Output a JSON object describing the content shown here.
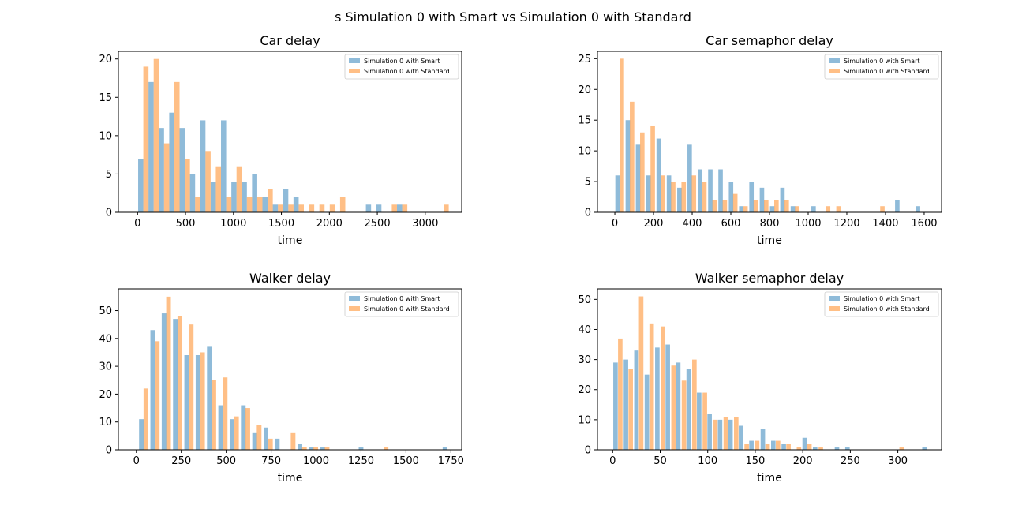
{
  "figure_title": "s Simulation 0 with Smart vs Simulation 0 with Standard",
  "colors": {
    "smart": "#1f77b4",
    "standard": "#ff7f0e",
    "bar_opacity": 0.5
  },
  "chart_data": [
    {
      "type": "bar",
      "title": "Car delay",
      "xlabel": "time",
      "ylabel": "",
      "xlim": [
        -200,
        3380
      ],
      "ylim": [
        0,
        21
      ],
      "xticks": [
        0,
        500,
        1000,
        1500,
        2000,
        2500,
        3000
      ],
      "yticks": [
        0,
        5,
        10,
        15,
        20
      ],
      "legend": "top-right",
      "grid": false,
      "bin_width": 54,
      "series": [
        {
          "name": "Simulation 0 with Smart",
          "x": [
            33,
            141,
            249,
            357,
            465,
            573,
            681,
            789,
            897,
            1005,
            1113,
            1221,
            1329,
            1437,
            1545,
            1653,
            2408,
            2516,
            2732
          ],
          "values": [
            7,
            17,
            11,
            13,
            11,
            5,
            12,
            4,
            12,
            4,
            4,
            5,
            2,
            1,
            3,
            2,
            1,
            1,
            1
          ]
        },
        {
          "name": "Simulation 0 with Standard",
          "x": [
            87,
            195,
            303,
            411,
            519,
            627,
            735,
            843,
            951,
            1059,
            1167,
            1275,
            1383,
            1491,
            1599,
            1707,
            1815,
            1923,
            2031,
            2139,
            2678,
            2786,
            3218
          ],
          "values": [
            19,
            20,
            9,
            17,
            7,
            2,
            8,
            6,
            2,
            6,
            2,
            2,
            3,
            1,
            1,
            1,
            1,
            1,
            1,
            2,
            1,
            1,
            1
          ]
        }
      ]
    },
    {
      "type": "bar",
      "title": "Car semaphor delay",
      "xlabel": "time",
      "ylabel": "",
      "xlim": [
        -90,
        1690
      ],
      "ylim": [
        0,
        26.2
      ],
      "xticks": [
        0,
        200,
        400,
        600,
        800,
        1000,
        1200,
        1400,
        1600
      ],
      "yticks": [
        0,
        5,
        10,
        15,
        20,
        25
      ],
      "legend": "top-right",
      "grid": false,
      "bin_width": 23,
      "series": [
        {
          "name": "Simulation 0 with Smart",
          "x": [
            14,
            67,
            120,
            174,
            227,
            280,
            334,
            387,
            441,
            494,
            547,
            601,
            654,
            707,
            761,
            814,
            867,
            921,
            1028,
            1461,
            1568
          ],
          "values": [
            6,
            15,
            11,
            6,
            12,
            6,
            4,
            11,
            7,
            7,
            7,
            5,
            1,
            5,
            4,
            1,
            4,
            1,
            1,
            2,
            1
          ]
        },
        {
          "name": "Simulation 0 with Standard",
          "x": [
            36,
            89,
            142,
            196,
            249,
            302,
            356,
            409,
            463,
            516,
            569,
            623,
            676,
            729,
            783,
            836,
            889,
            943,
            1103,
            1157,
            1384
          ],
          "values": [
            25,
            18,
            13,
            14,
            6,
            5,
            5,
            6,
            5,
            2,
            2,
            3,
            1,
            2,
            2,
            2,
            2,
            1,
            1,
            1,
            1
          ]
        }
      ]
    },
    {
      "type": "bar",
      "title": "Walker delay",
      "xlabel": "time",
      "ylabel": "",
      "xlim": [
        -100,
        1810
      ],
      "ylim": [
        0,
        57.8
      ],
      "xticks": [
        0,
        250,
        500,
        750,
        1000,
        1250,
        1500,
        1750
      ],
      "yticks": [
        0,
        10,
        20,
        30,
        40,
        50
      ],
      "legend": "top-right",
      "grid": false,
      "bin_width": 26,
      "series": [
        {
          "name": "Simulation 0 with Smart",
          "x": [
            28,
            91,
            154,
            217,
            280,
            343,
            406,
            469,
            532,
            595,
            658,
            721,
            784,
            910,
            973,
            1036,
            1250,
            1717
          ],
          "values": [
            11,
            43,
            49,
            47,
            34,
            34,
            37,
            16,
            11,
            16,
            6,
            8,
            4,
            2,
            1,
            1,
            1,
            1
          ]
        },
        {
          "name": "Simulation 0 with Standard",
          "x": [
            53,
            116,
            179,
            242,
            305,
            368,
            431,
            494,
            557,
            620,
            683,
            746,
            872,
            935,
            998,
            1061,
            1389
          ],
          "values": [
            22,
            39,
            55,
            48,
            45,
            35,
            25,
            26,
            12,
            15,
            9,
            4,
            6,
            1,
            1,
            1,
            1
          ]
        }
      ]
    },
    {
      "type": "bar",
      "title": "Walker semaphor delay",
      "xlabel": "time",
      "ylabel": "",
      "xlim": [
        -16,
        346
      ],
      "ylim": [
        0,
        53.5
      ],
      "xticks": [
        0,
        50,
        100,
        150,
        200,
        250,
        300
      ],
      "yticks": [
        0,
        10,
        20,
        30,
        40,
        50
      ],
      "legend": "top-right",
      "grid": false,
      "bin_width": 4.7,
      "series": [
        {
          "name": "Simulation 0 with Smart",
          "x": [
            3,
            14,
            25,
            36,
            47,
            58,
            69,
            80,
            91,
            102,
            113,
            124,
            135,
            146,
            158,
            169,
            180,
            202,
            213,
            236,
            247,
            328
          ],
          "values": [
            29,
            30,
            33,
            25,
            34,
            35,
            29,
            27,
            19,
            12,
            10,
            10,
            8,
            3,
            7,
            3,
            2,
            4,
            1,
            1,
            1,
            1
          ]
        },
        {
          "name": "Simulation 0 with Standard",
          "x": [
            8,
            19,
            30,
            41,
            53,
            64,
            75,
            86,
            97,
            108,
            119,
            130,
            141,
            152,
            163,
            174,
            185,
            196,
            207,
            219,
            304
          ],
          "values": [
            37,
            27,
            51,
            42,
            41,
            28,
            23,
            30,
            19,
            10,
            11,
            11,
            2,
            3,
            2,
            3,
            2,
            1,
            2,
            1,
            1
          ]
        }
      ]
    }
  ]
}
